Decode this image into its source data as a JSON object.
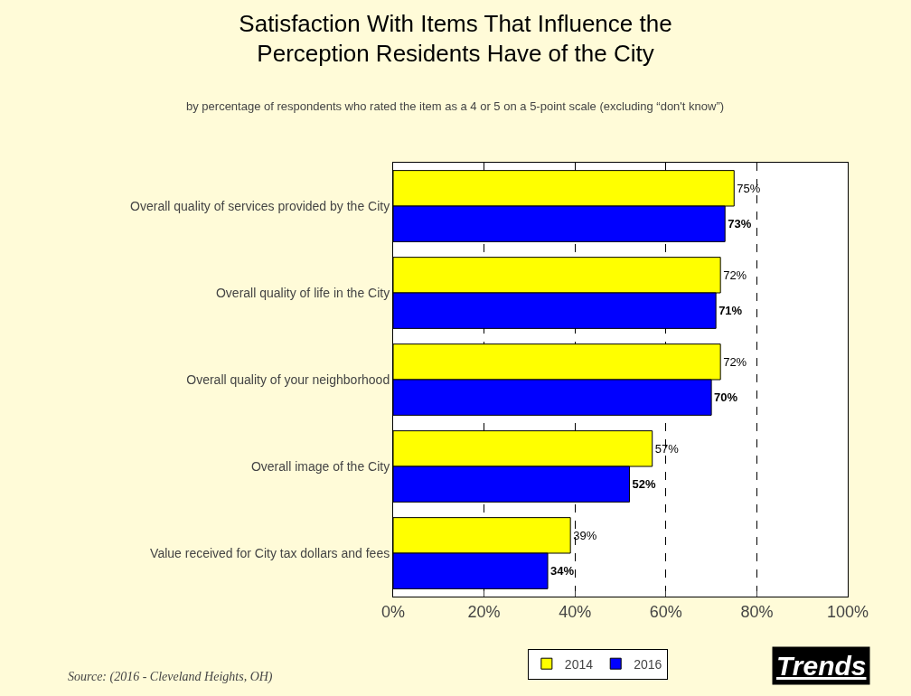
{
  "chart_data": {
    "type": "bar",
    "orientation": "horizontal",
    "title": "Satisfaction With Items That Influence the\nPerception Residents Have of the City",
    "subtitle": "by percentage of respondents who rated the item as a 4 or 5 on a 5-point scale (excluding “don't know”)",
    "categories": [
      "Overall quality of services provided by the City",
      "Overall quality of life in the City",
      "Overall quality of your neighborhood",
      "Overall image of the City",
      "Value received for City tax dollars and fees"
    ],
    "series": [
      {
        "name": "2014",
        "color": "#ffff00",
        "values": [
          75,
          72,
          72,
          57,
          39
        ],
        "value_labels": [
          "75%",
          "72%",
          "72%",
          "57%",
          "39%"
        ]
      },
      {
        "name": "2016",
        "color": "#0000ff",
        "values": [
          73,
          71,
          70,
          52,
          34
        ],
        "value_labels": [
          "73%",
          "71%",
          "70%",
          "52%",
          "34%"
        ]
      }
    ],
    "xlim": [
      0,
      100
    ],
    "xticks": [
      {
        "value": 0,
        "label": "0%"
      },
      {
        "value": 20,
        "label": "20%"
      },
      {
        "value": 40,
        "label": "40%"
      },
      {
        "value": 60,
        "label": "60%"
      },
      {
        "value": 80,
        "label": "80%"
      },
      {
        "value": 100,
        "label": "100%"
      }
    ],
    "grid": "x",
    "legend": "bottom",
    "annotations": [
      "Source: (2016 - Cleveland Heights, OH)",
      "Trends"
    ]
  }
}
